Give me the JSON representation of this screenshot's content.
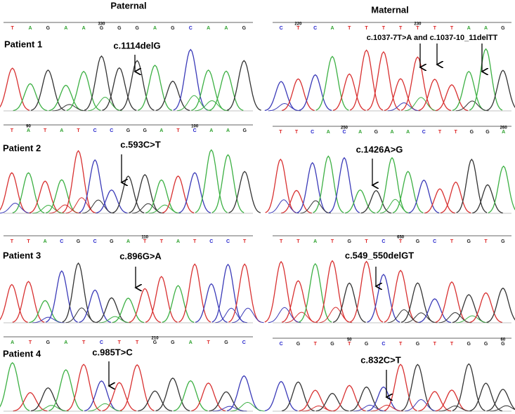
{
  "columns": [
    "Paternal",
    "Maternal"
  ],
  "patients": [
    "Patient 1",
    "Patient 2",
    "Patient 3",
    "Patient 4"
  ],
  "panels": [
    {
      "mutation": "c.1114delG",
      "bases": [
        {
          "base": "T"
        },
        {
          "base": "A"
        },
        {
          "base": "G"
        },
        {
          "base": "A"
        },
        {
          "base": "A"
        },
        {
          "base": "G",
          "pos": "330"
        },
        {
          "base": "G"
        },
        {
          "base": "G"
        },
        {
          "base": "A"
        },
        {
          "base": "G"
        },
        {
          "base": "C"
        },
        {
          "base": "A"
        },
        {
          "base": "A"
        },
        {
          "base": "G"
        }
      ]
    },
    {
      "mutation": "c.1037-7T>A and c.1037-10_11delTT",
      "bases": [
        {
          "base": "C"
        },
        {
          "base": "T",
          "pos": "220"
        },
        {
          "base": "C"
        },
        {
          "base": "A"
        },
        {
          "base": "T"
        },
        {
          "base": "T"
        },
        {
          "base": "T"
        },
        {
          "base": "T"
        },
        {
          "base": "T",
          "pos": "230"
        },
        {
          "base": "T"
        },
        {
          "base": "T"
        },
        {
          "base": "A"
        },
        {
          "base": "A"
        },
        {
          "base": "G"
        }
      ]
    },
    {
      "mutation": "c.593C>T",
      "bases": [
        {
          "base": "T"
        },
        {
          "base": "A",
          "pos": "90"
        },
        {
          "base": "T"
        },
        {
          "base": "A"
        },
        {
          "base": "T"
        },
        {
          "base": "C"
        },
        {
          "base": "C"
        },
        {
          "base": "G"
        },
        {
          "base": "G"
        },
        {
          "base": "A"
        },
        {
          "base": "T"
        },
        {
          "base": "C",
          "pos": "100"
        },
        {
          "base": "A"
        },
        {
          "base": "A"
        },
        {
          "base": "G"
        }
      ]
    },
    {
      "mutation": "c.1426A>G",
      "bases": [
        {
          "base": "T"
        },
        {
          "base": "T"
        },
        {
          "base": "C"
        },
        {
          "base": "A"
        },
        {
          "base": "C",
          "pos": "250"
        },
        {
          "base": "A"
        },
        {
          "base": "G"
        },
        {
          "base": "A"
        },
        {
          "base": "A"
        },
        {
          "base": "C"
        },
        {
          "base": "T"
        },
        {
          "base": "T"
        },
        {
          "base": "G"
        },
        {
          "base": "G"
        },
        {
          "base": "A",
          "pos": "260"
        }
      ]
    },
    {
      "mutation": "c.896G>A",
      "bases": [
        {
          "base": "T"
        },
        {
          "base": "T"
        },
        {
          "base": "A"
        },
        {
          "base": "C"
        },
        {
          "base": "G"
        },
        {
          "base": "C"
        },
        {
          "base": "G"
        },
        {
          "base": "A"
        },
        {
          "base": "T",
          "pos": "110"
        },
        {
          "base": "T"
        },
        {
          "base": "A"
        },
        {
          "base": "T"
        },
        {
          "base": "C"
        },
        {
          "base": "C"
        },
        {
          "base": "T"
        }
      ]
    },
    {
      "mutation": "c.549_550delGT",
      "bases": [
        {
          "base": "T"
        },
        {
          "base": "T"
        },
        {
          "base": "A"
        },
        {
          "base": "T"
        },
        {
          "base": "G"
        },
        {
          "base": "T"
        },
        {
          "base": "C"
        },
        {
          "base": "T",
          "pos": "650"
        },
        {
          "base": "G"
        },
        {
          "base": "C"
        },
        {
          "base": "T"
        },
        {
          "base": "G"
        },
        {
          "base": "T"
        },
        {
          "base": "G"
        }
      ]
    },
    {
      "mutation": "c.985T>C",
      "bases": [
        {
          "base": "A"
        },
        {
          "base": "T"
        },
        {
          "base": "G"
        },
        {
          "base": "A"
        },
        {
          "base": "T"
        },
        {
          "base": "C"
        },
        {
          "base": "T"
        },
        {
          "base": "T"
        },
        {
          "base": "G",
          "pos": "210"
        },
        {
          "base": "G"
        },
        {
          "base": "A"
        },
        {
          "base": "T"
        },
        {
          "base": "G"
        },
        {
          "base": "C"
        }
      ]
    },
    {
      "mutation": "c.832C>T",
      "bases": [
        {
          "base": "C"
        },
        {
          "base": "G"
        },
        {
          "base": "T"
        },
        {
          "base": "G"
        },
        {
          "base": "T",
          "pos": "50"
        },
        {
          "base": "G"
        },
        {
          "base": "C"
        },
        {
          "base": "T"
        },
        {
          "base": "G"
        },
        {
          "base": "T"
        },
        {
          "base": "T"
        },
        {
          "base": "G"
        },
        {
          "base": "G"
        },
        {
          "base": "G",
          "pos": "60"
        }
      ]
    }
  ]
}
